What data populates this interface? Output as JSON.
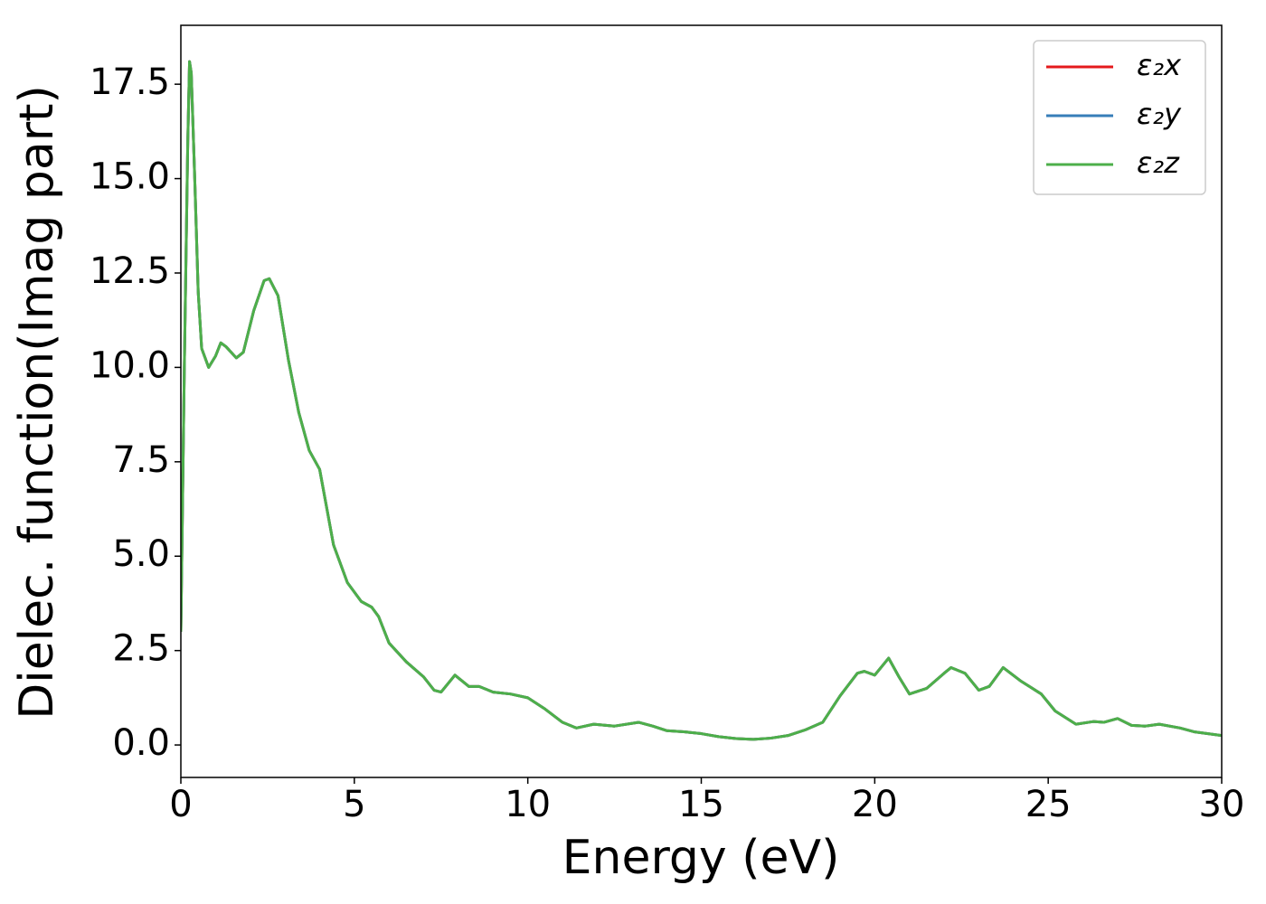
{
  "chart_data": {
    "type": "line",
    "xlabel": "Energy (eV)",
    "ylabel": "Dielec. function(Imag part)",
    "x": [
      0.0,
      0.1,
      0.2,
      0.25,
      0.3,
      0.4,
      0.5,
      0.6,
      0.8,
      1.0,
      1.15,
      1.3,
      1.6,
      1.8,
      2.1,
      2.4,
      2.55,
      2.8,
      3.1,
      3.4,
      3.7,
      4.0,
      4.2,
      4.4,
      4.8,
      5.2,
      5.5,
      5.7,
      6.0,
      6.5,
      7.0,
      7.3,
      7.5,
      7.9,
      8.3,
      8.6,
      9.0,
      9.5,
      10.0,
      10.5,
      11.0,
      11.4,
      11.9,
      12.5,
      13.2,
      13.6,
      14.0,
      14.5,
      15.0,
      15.5,
      16.0,
      16.5,
      17.0,
      17.5,
      18.0,
      18.5,
      19.0,
      19.5,
      19.7,
      20.0,
      20.4,
      20.7,
      21.0,
      21.5,
      22.0,
      22.2,
      22.6,
      23.0,
      23.3,
      23.7,
      24.2,
      24.8,
      25.2,
      25.8,
      26.3,
      26.6,
      27.0,
      27.4,
      27.8,
      28.2,
      28.8,
      29.2,
      30.0
    ],
    "series": [
      {
        "name": "ε₂x",
        "color": "#e41a1c",
        "values": [
          3.0,
          10,
          16,
          18.1,
          17.8,
          15,
          12,
          10.5,
          10.0,
          10.3,
          10.65,
          10.55,
          10.25,
          10.4,
          11.5,
          12.3,
          12.35,
          11.9,
          10.2,
          8.8,
          7.8,
          7.3,
          6.3,
          5.3,
          4.3,
          3.8,
          3.65,
          3.4,
          2.7,
          2.2,
          1.8,
          1.45,
          1.4,
          1.85,
          1.55,
          1.55,
          1.4,
          1.35,
          1.25,
          0.95,
          0.6,
          0.45,
          0.55,
          0.5,
          0.6,
          0.5,
          0.38,
          0.35,
          0.3,
          0.22,
          0.17,
          0.15,
          0.18,
          0.25,
          0.4,
          0.6,
          1.3,
          1.9,
          1.95,
          1.85,
          2.3,
          1.8,
          1.35,
          1.5,
          1.9,
          2.05,
          1.9,
          1.45,
          1.55,
          2.05,
          1.7,
          1.35,
          0.9,
          0.55,
          0.62,
          0.6,
          0.7,
          0.52,
          0.5,
          0.55,
          0.45,
          0.35,
          0.25
        ]
      },
      {
        "name": "ε₂y",
        "color": "#377eb8",
        "values": [
          3.0,
          10,
          16,
          18.1,
          17.8,
          15,
          12,
          10.5,
          10.0,
          10.3,
          10.65,
          10.55,
          10.25,
          10.4,
          11.5,
          12.3,
          12.35,
          11.9,
          10.2,
          8.8,
          7.8,
          7.3,
          6.3,
          5.3,
          4.3,
          3.8,
          3.65,
          3.4,
          2.7,
          2.2,
          1.8,
          1.45,
          1.4,
          1.85,
          1.55,
          1.55,
          1.4,
          1.35,
          1.25,
          0.95,
          0.6,
          0.45,
          0.55,
          0.5,
          0.6,
          0.5,
          0.38,
          0.35,
          0.3,
          0.22,
          0.17,
          0.15,
          0.18,
          0.25,
          0.4,
          0.6,
          1.3,
          1.9,
          1.95,
          1.85,
          2.3,
          1.8,
          1.35,
          1.5,
          1.9,
          2.05,
          1.9,
          1.45,
          1.55,
          2.05,
          1.7,
          1.35,
          0.9,
          0.55,
          0.62,
          0.6,
          0.7,
          0.52,
          0.5,
          0.55,
          0.45,
          0.35,
          0.25
        ]
      },
      {
        "name": "ε₂z",
        "color": "#4daf4a",
        "values": [
          3.0,
          10,
          16,
          18.1,
          17.8,
          15,
          12,
          10.5,
          10.0,
          10.3,
          10.65,
          10.55,
          10.25,
          10.4,
          11.5,
          12.3,
          12.35,
          11.9,
          10.2,
          8.8,
          7.8,
          7.3,
          6.3,
          5.3,
          4.3,
          3.8,
          3.65,
          3.4,
          2.7,
          2.2,
          1.8,
          1.45,
          1.4,
          1.85,
          1.55,
          1.55,
          1.4,
          1.35,
          1.25,
          0.95,
          0.6,
          0.45,
          0.55,
          0.5,
          0.6,
          0.5,
          0.38,
          0.35,
          0.3,
          0.22,
          0.17,
          0.15,
          0.18,
          0.25,
          0.4,
          0.6,
          1.3,
          1.9,
          1.95,
          1.85,
          2.3,
          1.8,
          1.35,
          1.5,
          1.9,
          2.05,
          1.9,
          1.45,
          1.55,
          2.05,
          1.7,
          1.35,
          0.9,
          0.55,
          0.62,
          0.6,
          0.7,
          0.52,
          0.5,
          0.55,
          0.45,
          0.35,
          0.25
        ]
      }
    ],
    "xlim": [
      0,
      30
    ],
    "xticks": [
      0,
      5,
      10,
      15,
      20,
      25,
      30
    ],
    "ylim": [
      -0.86,
      19.06
    ],
    "yticks": [
      {
        "value": 0,
        "label": "0.0"
      },
      2.5,
      {
        "value": 5,
        "label": "5.0"
      },
      7.5,
      {
        "value": 10,
        "label": "10.0"
      },
      12.5,
      {
        "value": 15,
        "label": "15.0"
      },
      17.5
    ],
    "legend": "upper right"
  }
}
